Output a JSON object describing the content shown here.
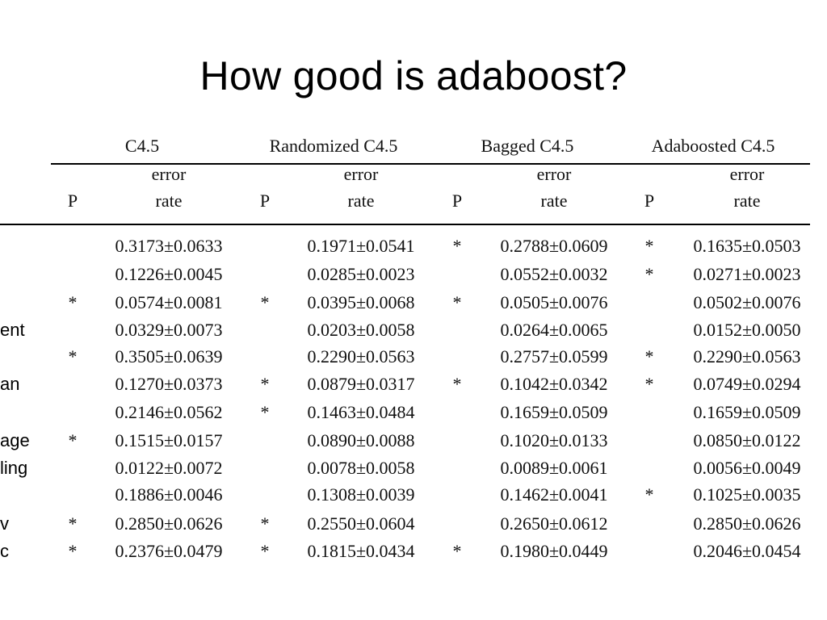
{
  "title": "How good is adaboost?",
  "columns": [
    "C4.5",
    "Randomized C4.5",
    "Bagged C4.5",
    "Adaboosted C4.5"
  ],
  "subheaders": {
    "p": "P",
    "error_top": "error",
    "error_bottom": "rate"
  },
  "row_labels": [
    "",
    "",
    "",
    "ent",
    "",
    "an",
    "",
    "age",
    "ling",
    "",
    "v",
    "c"
  ],
  "rows": [
    {
      "p": [
        "",
        "",
        "*",
        "*"
      ],
      "err": [
        "0.3173±0.0633",
        "0.1971±0.0541",
        "0.2788±0.0609",
        "0.1635±0.0503"
      ]
    },
    {
      "p": [
        "",
        "",
        "",
        "*"
      ],
      "err": [
        "0.1226±0.0045",
        "0.0285±0.0023",
        "0.0552±0.0032",
        "0.0271±0.0023"
      ]
    },
    {
      "p": [
        "*",
        "*",
        "*",
        ""
      ],
      "err": [
        "0.0574±0.0081",
        "0.0395±0.0068",
        "0.0505±0.0076",
        "0.0502±0.0076"
      ]
    },
    {
      "p": [
        "",
        "",
        "",
        ""
      ],
      "err": [
        "0.0329±0.0073",
        "0.0203±0.0058",
        "0.0264±0.0065",
        "0.0152±0.0050"
      ]
    },
    {
      "p": [
        "*",
        "",
        "",
        "*"
      ],
      "err": [
        "0.3505±0.0639",
        "0.2290±0.0563",
        "0.2757±0.0599",
        "0.2290±0.0563"
      ]
    },
    {
      "p": [
        "",
        "*",
        "*",
        "*"
      ],
      "err": [
        "0.1270±0.0373",
        "0.0879±0.0317",
        "0.1042±0.0342",
        "0.0749±0.0294"
      ]
    },
    {
      "p": [
        "",
        "*",
        "",
        ""
      ],
      "err": [
        "0.2146±0.0562",
        "0.1463±0.0484",
        "0.1659±0.0509",
        "0.1659±0.0509"
      ]
    },
    {
      "p": [
        "*",
        "",
        "",
        ""
      ],
      "err": [
        "0.1515±0.0157",
        "0.0890±0.0088",
        "0.1020±0.0133",
        "0.0850±0.0122"
      ]
    },
    {
      "p": [
        "",
        "",
        "",
        ""
      ],
      "err": [
        "0.0122±0.0072",
        "0.0078±0.0058",
        "0.0089±0.0061",
        "0.0056±0.0049"
      ]
    },
    {
      "p": [
        "",
        "",
        "",
        "*"
      ],
      "err": [
        "0.1886±0.0046",
        "0.1308±0.0039",
        "0.1462±0.0041",
        "0.1025±0.0035"
      ]
    },
    {
      "p": [
        "*",
        "*",
        "",
        ""
      ],
      "err": [
        "0.2850±0.0626",
        "0.2550±0.0604",
        "0.2650±0.0612",
        "0.2850±0.0626"
      ]
    },
    {
      "p": [
        "*",
        "*",
        "*",
        ""
      ],
      "err": [
        "0.2376±0.0479",
        "0.1815±0.0434",
        "0.1980±0.0449",
        "0.2046±0.0454"
      ]
    }
  ]
}
